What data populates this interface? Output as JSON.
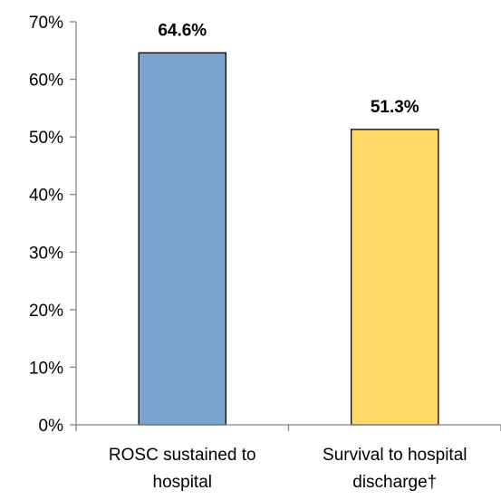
{
  "chart_data": {
    "type": "bar",
    "categories": [
      [
        "ROSC sustained to",
        "hospital"
      ],
      [
        "Survival to hospital",
        "discharge†"
      ]
    ],
    "values": [
      64.6,
      51.3
    ],
    "data_labels": [
      "64.6%",
      "51.3%"
    ],
    "colors": [
      "#7BA3D0",
      "#FFD966"
    ],
    "ylim": [
      0,
      70
    ],
    "yticks": [
      0,
      10,
      20,
      30,
      40,
      50,
      60,
      70
    ],
    "ytick_labels": [
      "0%",
      "10%",
      "20%",
      "30%",
      "40%",
      "50%",
      "60%",
      "70%"
    ],
    "title": "",
    "xlabel": "",
    "ylabel": "",
    "grid": false,
    "legend": "none"
  }
}
